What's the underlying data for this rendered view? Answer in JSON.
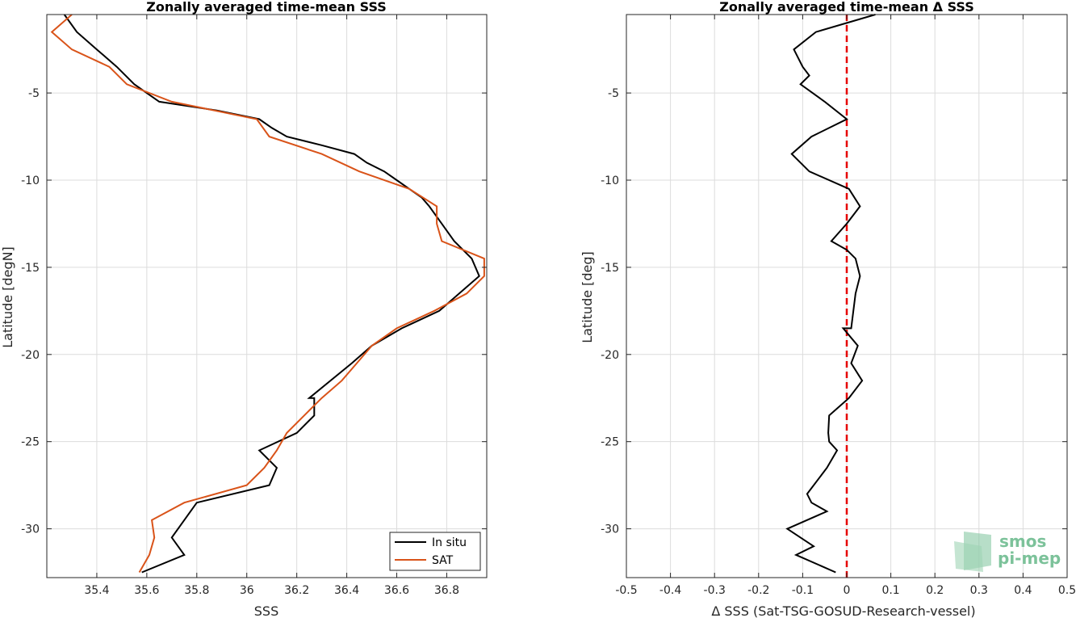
{
  "chart_data": [
    {
      "type": "line",
      "title": "Zonally averaged time-mean SSS",
      "xlabel": "SSS",
      "ylabel": "Latitude [degN]",
      "xlim": [
        35.2,
        36.96
      ],
      "ylim": [
        -32.8,
        -0.5
      ],
      "xticks": [
        35.4,
        35.6,
        35.8,
        36,
        36.2,
        36.4,
        36.6,
        36.8
      ],
      "yticks": [
        -5,
        -10,
        -15,
        -20,
        -25,
        -30
      ],
      "grid": true,
      "legend": "bottom-right",
      "series": [
        {
          "name": "In situ",
          "color": "#000000",
          "points": [
            [
              35.27,
              -0.5
            ],
            [
              35.32,
              -1.5
            ],
            [
              35.4,
              -2.5
            ],
            [
              35.48,
              -3.5
            ],
            [
              35.55,
              -4.5
            ],
            [
              35.65,
              -5.5
            ],
            [
              35.88,
              -6
            ],
            [
              36.05,
              -6.5
            ],
            [
              36.1,
              -7
            ],
            [
              36.16,
              -7.5
            ],
            [
              36.3,
              -8
            ],
            [
              36.43,
              -8.5
            ],
            [
              36.48,
              -9
            ],
            [
              36.55,
              -9.5
            ],
            [
              36.6,
              -10
            ],
            [
              36.65,
              -10.5
            ],
            [
              36.7,
              -11
            ],
            [
              36.73,
              -11.5
            ],
            [
              36.78,
              -12.5
            ],
            [
              36.83,
              -13.5
            ],
            [
              36.9,
              -14.5
            ],
            [
              36.93,
              -15.5
            ],
            [
              36.85,
              -16.5
            ],
            [
              36.77,
              -17.5
            ],
            [
              36.62,
              -18.5
            ],
            [
              36.5,
              -19.5
            ],
            [
              36.42,
              -20.5
            ],
            [
              36.25,
              -22.5
            ],
            [
              36.27,
              -22.5
            ],
            [
              36.27,
              -23.5
            ],
            [
              36.2,
              -24.5
            ],
            [
              36.05,
              -25.5
            ],
            [
              36.12,
              -26.5
            ],
            [
              36.09,
              -27.5
            ],
            [
              35.8,
              -28.5
            ],
            [
              35.75,
              -29.5
            ],
            [
              35.7,
              -30.5
            ],
            [
              35.75,
              -31.5
            ],
            [
              35.58,
              -32.5
            ]
          ]
        },
        {
          "name": "SAT",
          "color": "#d95319",
          "points": [
            [
              35.3,
              -0.5
            ],
            [
              35.22,
              -1.5
            ],
            [
              35.3,
              -2.5
            ],
            [
              35.45,
              -3.5
            ],
            [
              35.52,
              -4.5
            ],
            [
              35.7,
              -5.5
            ],
            [
              36.04,
              -6.5
            ],
            [
              36.09,
              -7.5
            ],
            [
              36.3,
              -8.5
            ],
            [
              36.45,
              -9.5
            ],
            [
              36.65,
              -10.5
            ],
            [
              36.76,
              -11.5
            ],
            [
              36.76,
              -12.5
            ],
            [
              36.78,
              -13.5
            ],
            [
              36.95,
              -14.5
            ],
            [
              36.95,
              -15.5
            ],
            [
              36.88,
              -16.5
            ],
            [
              36.75,
              -17.5
            ],
            [
              36.6,
              -18.5
            ],
            [
              36.5,
              -19.5
            ],
            [
              36.44,
              -20.5
            ],
            [
              36.38,
              -21.5
            ],
            [
              36.3,
              -22.5
            ],
            [
              36.23,
              -23.5
            ],
            [
              36.16,
              -24.5
            ],
            [
              36.12,
              -25.5
            ],
            [
              36.07,
              -26.5
            ],
            [
              36.0,
              -27.5
            ],
            [
              35.75,
              -28.5
            ],
            [
              35.62,
              -29.5
            ],
            [
              35.63,
              -30.5
            ],
            [
              35.61,
              -31.5
            ],
            [
              35.57,
              -32.5
            ]
          ]
        }
      ]
    },
    {
      "type": "line",
      "title": "Zonally averaged time-mean Δ SSS",
      "xlabel": "Δ SSS (Sat-TSG-GOSUD-Research-vessel)",
      "ylabel": "Latitude [deg]",
      "xlim": [
        -0.5,
        0.5
      ],
      "ylim": [
        -32.8,
        -0.5
      ],
      "xticks": [
        -0.5,
        -0.4,
        -0.3,
        -0.2,
        -0.1,
        0,
        0.1,
        0.2,
        0.3,
        0.4,
        0.5
      ],
      "yticks": [
        -5,
        -10,
        -15,
        -20,
        -25,
        -30
      ],
      "grid": true,
      "reference_line": {
        "x": 0,
        "color": "#e60000",
        "style": "dashed"
      },
      "series": [
        {
          "color": "#000000",
          "points": [
            [
              0.065,
              -0.5
            ],
            [
              -0.07,
              -1.5
            ],
            [
              -0.12,
              -2.5
            ],
            [
              -0.1,
              -3.5
            ],
            [
              -0.085,
              -4
            ],
            [
              -0.105,
              -4.5
            ],
            [
              -0.05,
              -5.5
            ],
            [
              0,
              -6.5
            ],
            [
              -0.08,
              -7.5
            ],
            [
              -0.125,
              -8.5
            ],
            [
              -0.085,
              -9.5
            ],
            [
              0.005,
              -10.5
            ],
            [
              0.03,
              -11.5
            ],
            [
              0,
              -12.5
            ],
            [
              -0.035,
              -13.5
            ],
            [
              0,
              -14
            ],
            [
              0.02,
              -14.5
            ],
            [
              0.03,
              -15.5
            ],
            [
              0.02,
              -16.5
            ],
            [
              0.015,
              -17.5
            ],
            [
              0.01,
              -18.5
            ],
            [
              -0.008,
              -18.5
            ],
            [
              0.025,
              -19.5
            ],
            [
              0.01,
              -20.5
            ],
            [
              0.035,
              -21.5
            ],
            [
              0.005,
              -22.5
            ],
            [
              -0.04,
              -23.5
            ],
            [
              -0.042,
              -24.5
            ],
            [
              -0.04,
              -25
            ],
            [
              -0.022,
              -25.5
            ],
            [
              -0.045,
              -26.5
            ],
            [
              -0.09,
              -28
            ],
            [
              -0.08,
              -28.5
            ],
            [
              -0.045,
              -29
            ],
            [
              -0.135,
              -30
            ],
            [
              -0.075,
              -31
            ],
            [
              -0.115,
              -31.5
            ],
            [
              -0.025,
              -32.5
            ]
          ]
        }
      ]
    }
  ],
  "logo": {
    "line1": "smos",
    "line2": "pi-mep",
    "color": "#7cc29a"
  }
}
